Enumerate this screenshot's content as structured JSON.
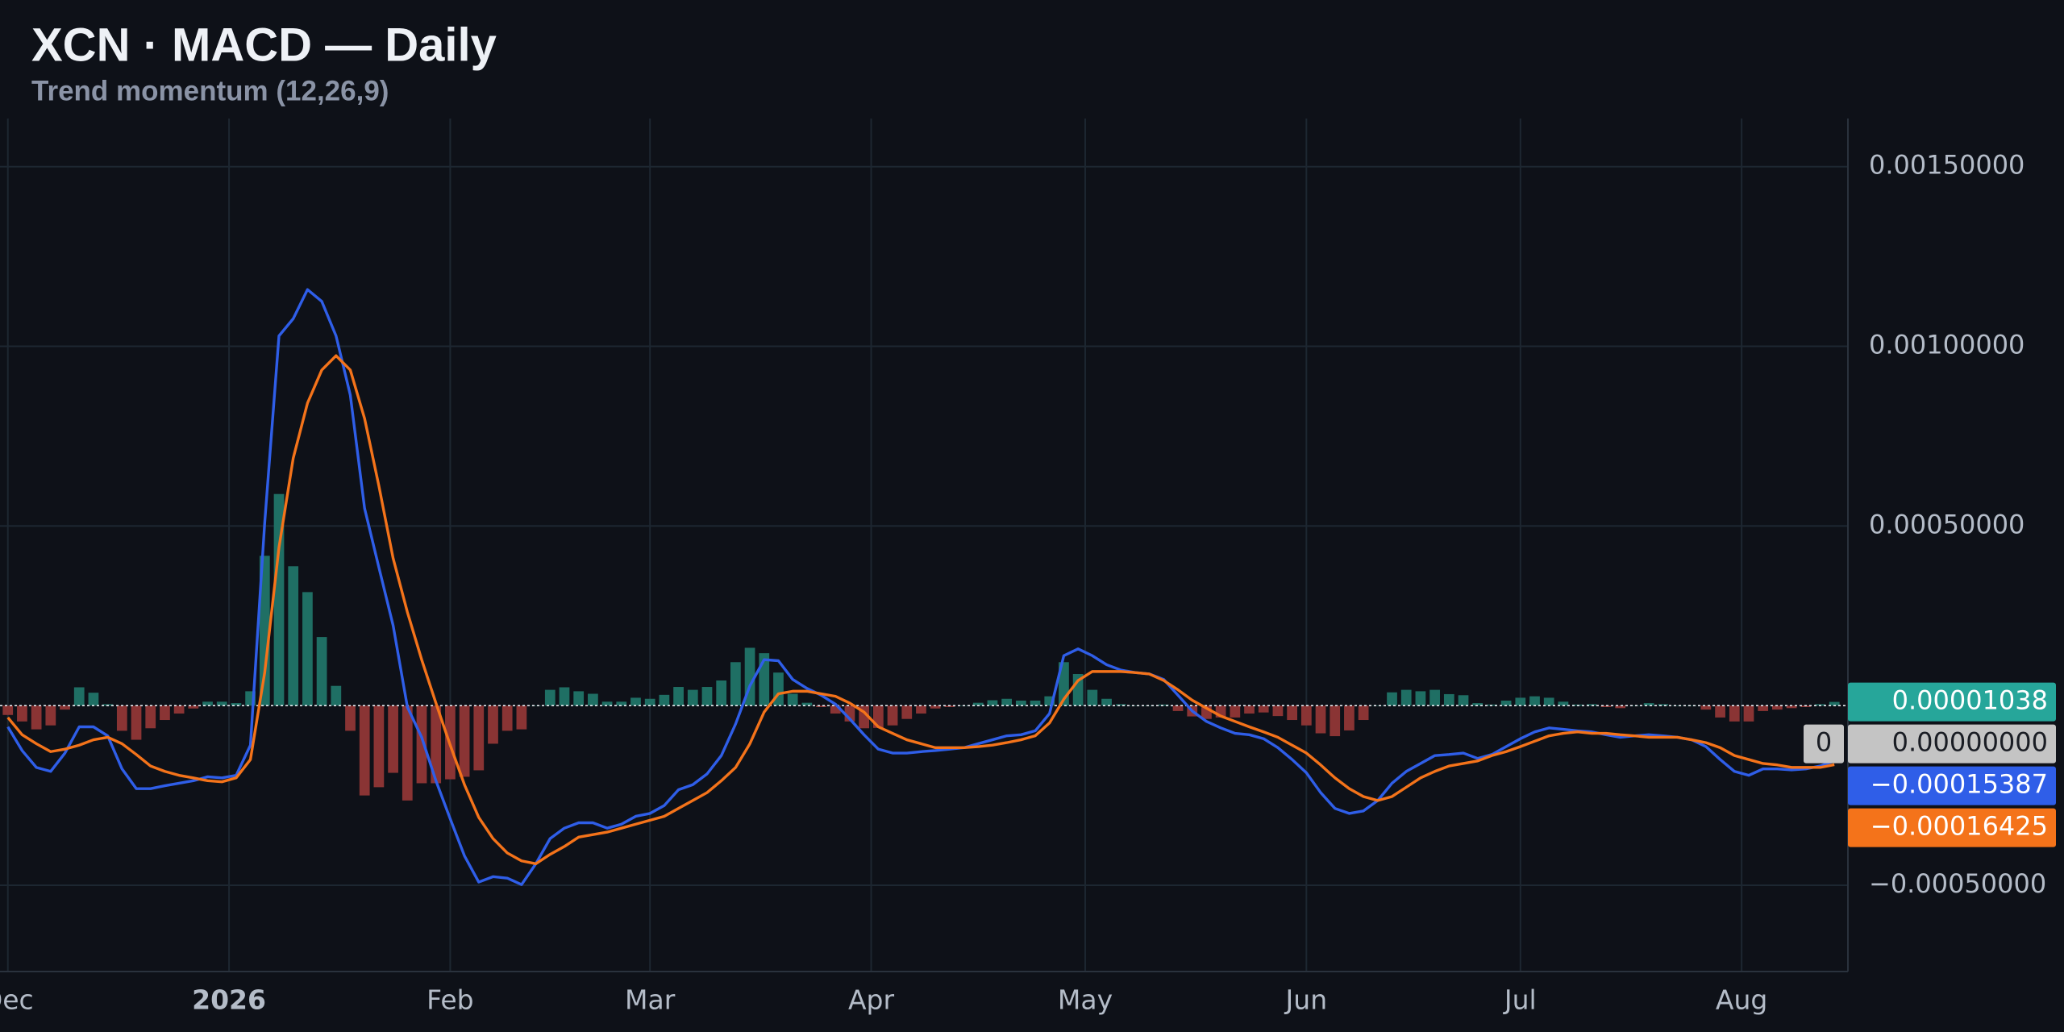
{
  "chart_data": {
    "type": "macd",
    "title": "XCN · MACD — Daily",
    "subtitle": "Trend momentum (12,26,9)",
    "x": [
      0,
      2,
      4,
      6,
      8,
      10,
      12,
      14,
      16,
      18,
      20,
      22,
      24,
      26,
      28,
      30,
      32,
      34,
      36,
      38,
      40,
      42,
      44,
      46,
      48,
      50,
      52,
      54,
      56,
      58,
      60,
      62,
      64,
      66,
      68,
      70,
      72,
      74,
      76,
      78,
      80,
      82,
      84,
      86,
      88,
      90,
      92,
      94,
      96,
      98,
      100,
      102,
      104,
      106,
      108,
      110,
      112,
      114,
      116,
      118,
      120,
      122,
      124,
      126,
      128,
      130,
      132,
      134,
      136,
      138,
      140,
      142,
      144,
      146,
      148,
      150,
      152,
      154,
      156,
      158,
      160,
      162,
      164,
      166,
      168,
      170,
      172,
      174,
      176,
      178,
      180,
      182,
      184,
      186,
      188,
      190,
      192,
      194,
      196,
      198,
      200,
      202,
      204,
      206,
      208,
      210,
      212,
      214,
      216,
      218,
      220,
      222,
      224,
      226,
      228,
      230,
      232,
      234,
      236,
      238,
      240,
      242,
      244,
      246,
      248,
      250,
      252,
      254,
      256
    ],
    "xlim": [
      -1.1,
      257.9
    ],
    "xticks": [
      {
        "value": 0,
        "label": "Dec"
      },
      {
        "value": 31,
        "label": "2026"
      },
      {
        "value": 62,
        "label": "Feb"
      },
      {
        "value": 90,
        "label": "Mar"
      },
      {
        "value": 121,
        "label": "Apr"
      },
      {
        "value": 151,
        "label": "May"
      },
      {
        "value": 182,
        "label": "Jun"
      },
      {
        "value": 212,
        "label": "Jul"
      },
      {
        "value": 243,
        "label": "Aug"
      }
    ],
    "ylim": [
      -0.00074,
      0.001634
    ],
    "yticks": [
      {
        "value": 0.0015,
        "label": "0.00150000"
      },
      {
        "value": 0.001,
        "label": "0.00100000"
      },
      {
        "value": 0.0005,
        "label": "0.00050000"
      },
      {
        "value": -0.0005,
        "label": "−0.00050000"
      }
    ],
    "grid": true,
    "zero_line": {
      "value": 0,
      "badge": "0",
      "label": "0.00000000"
    },
    "histogram": {
      "positive_color": "#1f6f64",
      "negative_color": "#8a3434",
      "label_color": "#26a69a",
      "last_label": "0.00001038",
      "values": [
        -2.6e-05,
        -4.4e-05,
        -6.6e-05,
        -5.5e-05,
        -1.1e-05,
        5.1e-05,
        3.6e-05,
        4e-06,
        -7e-05,
        -9.5e-05,
        -6.3e-05,
        -4e-05,
        -2.2e-05,
        -8e-06,
        1.1e-05,
        1.1e-05,
        7e-06,
        4e-05,
        0.000417,
        0.000589,
        0.000388,
        0.000316,
        0.000191,
        5.5e-05,
        -7e-05,
        -0.00025,
        -0.000227,
        -0.000187,
        -0.000264,
        -0.000216,
        -0.000216,
        -0.000205,
        -0.000198,
        -0.00018,
        -0.000106,
        -7e-05,
        -6.6e-05,
        0,
        4.4e-05,
        5.1e-05,
        4e-05,
        3.3e-05,
        1.1e-05,
        1.1e-05,
        2.2e-05,
        1.9e-05,
        3e-05,
        5.2e-05,
        4.4e-05,
        5.2e-05,
        7e-05,
        0.000121,
        0.000161,
        0.000146,
        9.2e-05,
        3.3e-05,
        8e-06,
        -4e-06,
        -2.2e-05,
        -4.4e-05,
        -6.3e-05,
        -6.2e-05,
        -5.5e-05,
        -3.7e-05,
        -2.2e-05,
        -8e-06,
        -4e-06,
        0,
        8e-06,
        1.5e-05,
        1.9e-05,
        1.4e-05,
        1.4e-05,
        2.6e-05,
        0.000121,
        8.8e-05,
        4.4e-05,
        1.9e-05,
        4e-06,
        0,
        0,
        3e-06,
        -1.5e-05,
        -3e-05,
        -3.7e-05,
        -3.3e-05,
        -3.3e-05,
        -2.2e-05,
        -1.9e-05,
        -2.9e-05,
        -4e-05,
        -5.5e-05,
        -7.7e-05,
        -8.5e-05,
        -6.9e-05,
        -4e-05,
        0,
        3.7e-05,
        4.4e-05,
        4e-05,
        4.4e-05,
        3.2e-05,
        2.9e-05,
        7e-06,
        3e-06,
        1.4e-05,
        2.2e-05,
        2.6e-05,
        2.2e-05,
        1.1e-05,
        3e-06,
        4e-06,
        -4e-06,
        -7e-06,
        0,
        7e-06,
        4e-06,
        0,
        0,
        -1.1e-05,
        -3.3e-05,
        -4.4e-05,
        -4.4e-05,
        -1.5e-05,
        -1.1e-05,
        -7e-06,
        -4e-06,
        4e-06,
        1.038e-05
      ]
    },
    "series": [
      {
        "color": "#2f5ee8",
        "last_label": "−0.00015387",
        "values": [
          -5.9e-05,
          -0.000125,
          -0.000172,
          -0.000183,
          -0.000132,
          -5.9e-05,
          -5.9e-05,
          -8.4e-05,
          -0.000176,
          -0.000231,
          -0.000231,
          -0.000223,
          -0.000216,
          -0.000209,
          -0.000198,
          -0.000201,
          -0.000194,
          -0.00011,
          0.000509,
          0.001029,
          0.001077,
          0.001158,
          0.001125,
          0.001029,
          0.000864,
          0.000549,
          0.000385,
          0.000223,
          -4e-06,
          -8.8e-05,
          -0.000209,
          -0.000315,
          -0.000418,
          -0.000491,
          -0.000476,
          -0.00048,
          -0.000498,
          -0.00044,
          -0.00037,
          -0.000341,
          -0.000326,
          -0.000326,
          -0.000341,
          -0.00033,
          -0.000308,
          -0.0003,
          -0.000278,
          -0.000234,
          -0.00022,
          -0.00019,
          -0.000139,
          -5.1e-05,
          5.5e-05,
          0.000128,
          0.000125,
          7.3e-05,
          4.8e-05,
          2.9e-05,
          4e-06,
          -3.7e-05,
          -8.1e-05,
          -0.000121,
          -0.000132,
          -0.000132,
          -0.000128,
          -0.000125,
          -0.000121,
          -0.000117,
          -0.000106,
          -9.5e-05,
          -8.4e-05,
          -8.1e-05,
          -7e-05,
          -2.2e-05,
          0.000139,
          0.000158,
          0.000139,
          0.000114,
          9.9e-05,
          9.2e-05,
          8.8e-05,
          7.3e-05,
          2.9e-05,
          -1.5e-05,
          -4.4e-05,
          -6.2e-05,
          -7.7e-05,
          -8.1e-05,
          -9.2e-05,
          -0.000117,
          -0.00015,
          -0.000187,
          -0.000242,
          -0.000286,
          -0.0003,
          -0.000293,
          -0.000264,
          -0.000216,
          -0.000183,
          -0.000161,
          -0.000139,
          -0.000136,
          -0.000132,
          -0.000147,
          -0.000136,
          -0.000114,
          -9.2e-05,
          -7.3e-05,
          -6.2e-05,
          -6.6e-05,
          -7e-05,
          -7.3e-05,
          -8.1e-05,
          -8.8e-05,
          -8.4e-05,
          -8.1e-05,
          -8.4e-05,
          -8.8e-05,
          -9.5e-05,
          -0.000114,
          -0.00015,
          -0.000183,
          -0.000194,
          -0.000176,
          -0.000176,
          -0.000179,
          -0.000176,
          -0.000168,
          -0.00015387
        ]
      },
      {
        "color": "#f4731a",
        "last_label": "−0.00016425",
        "values": [
          -3.3e-05,
          -8.1e-05,
          -0.000106,
          -0.000128,
          -0.000121,
          -0.00011,
          -9.5e-05,
          -8.8e-05,
          -0.000106,
          -0.000136,
          -0.000168,
          -0.000183,
          -0.000194,
          -0.000201,
          -0.000209,
          -0.000212,
          -0.000201,
          -0.00015,
          9.2e-05,
          0.00044,
          0.000689,
          0.000842,
          0.000934,
          0.000974,
          0.000934,
          0.000799,
          0.000612,
          0.00041,
          0.00026,
          0.000128,
          7e-06,
          -0.00011,
          -0.00022,
          -0.000311,
          -0.00037,
          -0.00041,
          -0.000432,
          -0.00044,
          -0.000414,
          -0.000392,
          -0.000366,
          -0.000359,
          -0.000352,
          -0.000341,
          -0.00033,
          -0.000319,
          -0.000308,
          -0.000286,
          -0.000264,
          -0.000242,
          -0.000209,
          -0.000172,
          -0.000106,
          -1.8e-05,
          3.3e-05,
          4e-05,
          4e-05,
          3.3e-05,
          2.6e-05,
          7e-06,
          -1.8e-05,
          -5.9e-05,
          -7.7e-05,
          -9.5e-05,
          -0.000106,
          -0.000117,
          -0.000117,
          -0.000117,
          -0.000114,
          -0.00011,
          -0.000103,
          -9.5e-05,
          -8.4e-05,
          -4.8e-05,
          1.8e-05,
          7e-05,
          9.5e-05,
          9.5e-05,
          9.5e-05,
          9.2e-05,
          8.8e-05,
          7e-05,
          4.4e-05,
          1.5e-05,
          -7e-06,
          -2.9e-05,
          -4.4e-05,
          -5.9e-05,
          -7.3e-05,
          -8.8e-05,
          -0.00011,
          -0.000132,
          -0.000165,
          -0.000201,
          -0.000231,
          -0.000253,
          -0.000264,
          -0.000253,
          -0.000227,
          -0.000201,
          -0.000183,
          -0.000168,
          -0.000161,
          -0.000154,
          -0.000139,
          -0.000128,
          -0.000114,
          -9.9e-05,
          -8.4e-05,
          -7.7e-05,
          -7.3e-05,
          -7.7e-05,
          -7.7e-05,
          -8.1e-05,
          -8.4e-05,
          -8.8e-05,
          -8.8e-05,
          -8.8e-05,
          -9.5e-05,
          -0.000103,
          -0.000117,
          -0.000139,
          -0.00015,
          -0.000161,
          -0.000165,
          -0.000172,
          -0.000172,
          -0.000172,
          -0.00016425
        ]
      }
    ]
  }
}
